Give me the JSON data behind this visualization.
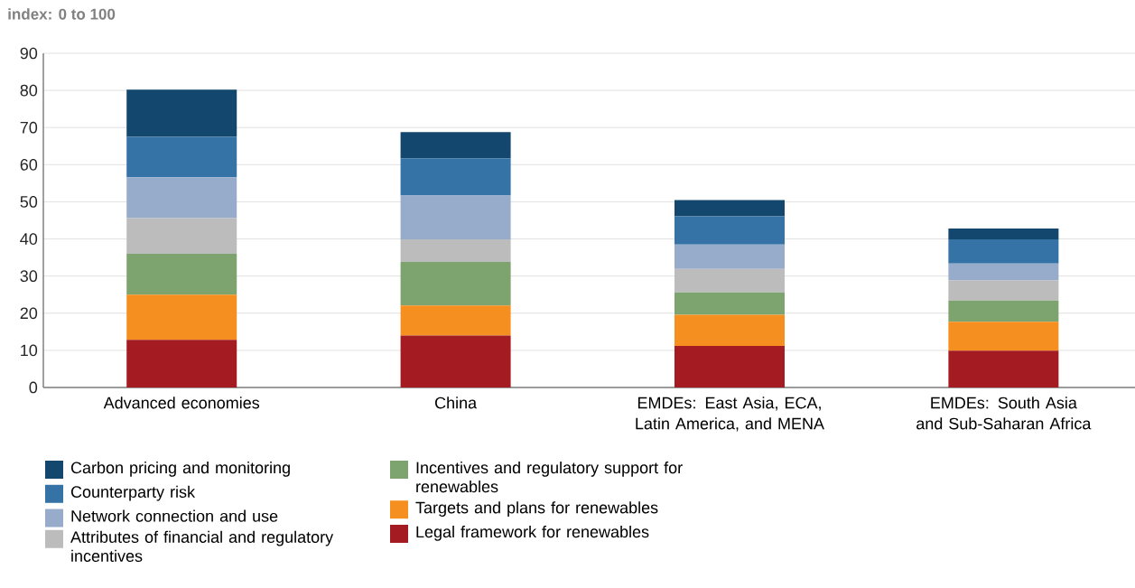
{
  "chart_data": {
    "type": "bar",
    "stacked": true,
    "ylabel": "index: 0 to 100",
    "categories": [
      "Advanced economies",
      "China",
      "EMDEs: East Asia, ECA, Latin America, and MENA",
      "EMDEs: South Asia and Sub-Saharan Africa"
    ],
    "series": [
      {
        "name": "Legal framework for renewables",
        "color": "#a41c21",
        "values": [
          12.8,
          14.0,
          11.2,
          9.9
        ]
      },
      {
        "name": "Targets and plans for renewables",
        "color": "#f58f1f",
        "values": [
          12.2,
          8.1,
          8.4,
          7.8
        ]
      },
      {
        "name": "Incentives and regulatory support for renewables",
        "color": "#7da46e",
        "values": [
          11.0,
          11.7,
          6.0,
          5.7
        ]
      },
      {
        "name": "Attributes of financial and regulatory incentives",
        "color": "#bcbcbc",
        "values": [
          9.6,
          6.1,
          6.3,
          5.4
        ]
      },
      {
        "name": "Network connection and use",
        "color": "#97abcb",
        "values": [
          11.0,
          11.8,
          6.6,
          4.6
        ]
      },
      {
        "name": "Counterparty risk",
        "color": "#3572a5",
        "values": [
          10.9,
          10.0,
          7.6,
          6.5
        ]
      },
      {
        "name": "Carbon pricing and monitoring",
        "color": "#13476d",
        "values": [
          12.7,
          7.1,
          4.4,
          2.9
        ]
      }
    ],
    "ylim": [
      0,
      90
    ],
    "yticks": [
      0,
      10,
      20,
      30,
      40,
      50,
      60,
      70,
      80,
      90
    ],
    "grid": "y",
    "legend": "bottom"
  }
}
